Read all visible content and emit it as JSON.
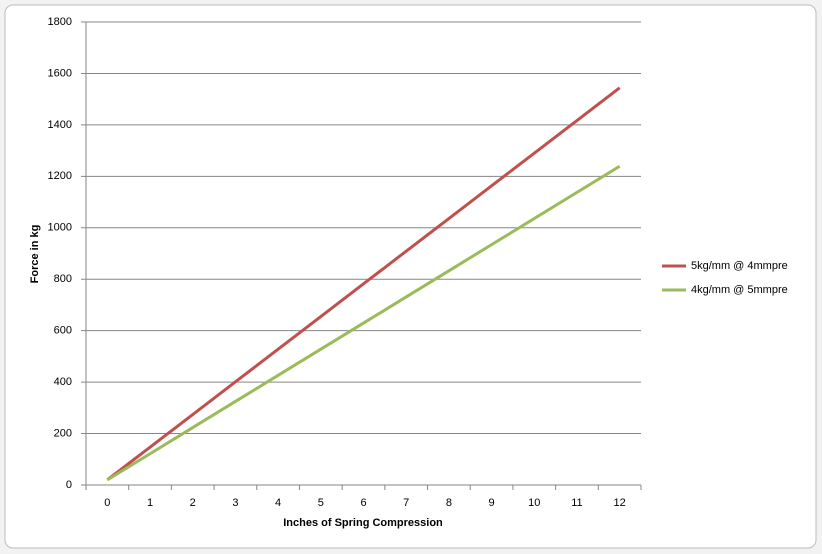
{
  "chart_data": {
    "type": "line",
    "x_label": "Inches of Spring Compression",
    "y_label": "Force in kg",
    "categories": [
      "0",
      "1",
      "2",
      "3",
      "4",
      "5",
      "6",
      "7",
      "8",
      "9",
      "10",
      "11",
      "12"
    ],
    "series": [
      {
        "name": "5kg/mm @ 4mmpre",
        "color": "#c0504d",
        "values": [
          20,
          147,
          274,
          401,
          528,
          655,
          782,
          909,
          1036,
          1163,
          1290,
          1417,
          1544
        ]
      },
      {
        "name": "4kg/mm @ 5mmpre",
        "color": "#9bbb59",
        "values": [
          20,
          121.6,
          223.2,
          324.8,
          426.4,
          528,
          629.6,
          731.2,
          832.8,
          934.4,
          1036,
          1137.6,
          1239.2
        ]
      }
    ],
    "ylim": [
      0,
      1800
    ],
    "yticks": [
      0,
      200,
      400,
      600,
      800,
      1000,
      1200,
      1400,
      1600,
      1800
    ],
    "grid": true,
    "legend": "right"
  }
}
